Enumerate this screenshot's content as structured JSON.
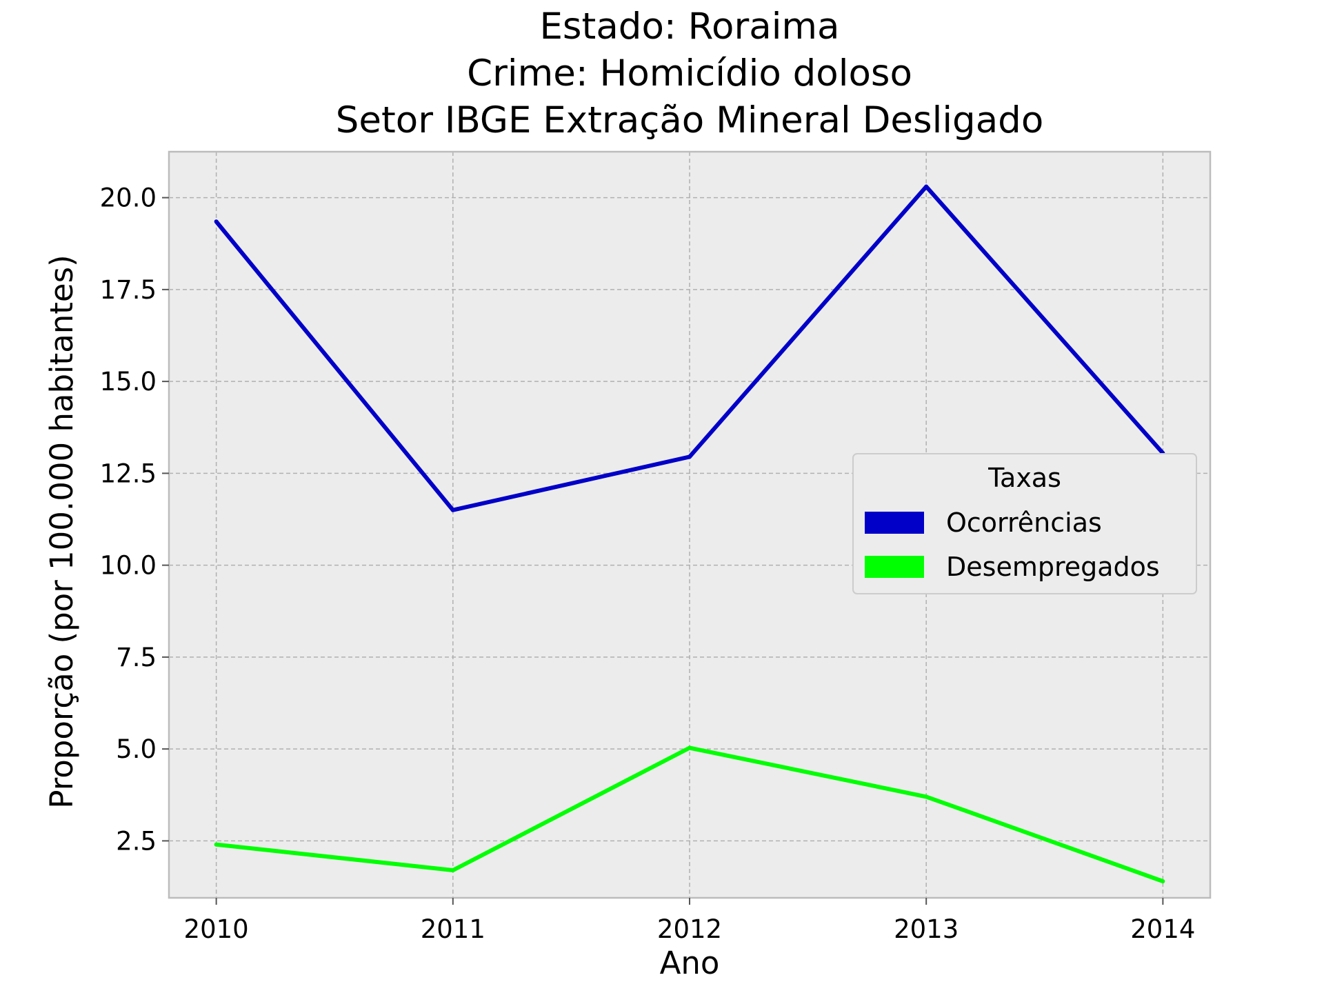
{
  "chart_data": {
    "type": "line",
    "title_lines": [
      "Estado: Roraima",
      "Crime: Homicídio doloso",
      "Setor IBGE  Extração Mineral   Desligado"
    ],
    "xlabel": "Ano",
    "ylabel": "Proporção (por 100.000 habitantes)",
    "x": [
      2010,
      2011,
      2012,
      2013,
      2014
    ],
    "x_tick_labels": [
      "2010",
      "2011",
      "2012",
      "2013",
      "2014"
    ],
    "y_ticks": [
      2.5,
      5.0,
      7.5,
      10.0,
      12.5,
      15.0,
      17.5,
      20.0
    ],
    "y_tick_labels": [
      "2.5",
      "5.0",
      "7.5",
      "10.0",
      "12.5",
      "15.0",
      "17.5",
      "20.0"
    ],
    "xlim": [
      2009.8,
      2014.2
    ],
    "ylim": [
      0.95,
      21.25
    ],
    "grid": true,
    "series": [
      {
        "name": "Ocorrências",
        "color": "#0000c8",
        "values": [
          19.35,
          11.5,
          12.95,
          20.3,
          13.05
        ]
      },
      {
        "name": "Desempregados",
        "color": "#00ff00",
        "values": [
          2.4,
          1.7,
          5.03,
          3.7,
          1.4
        ]
      }
    ],
    "legend": {
      "title": "Taxas",
      "position": "center-right"
    }
  }
}
